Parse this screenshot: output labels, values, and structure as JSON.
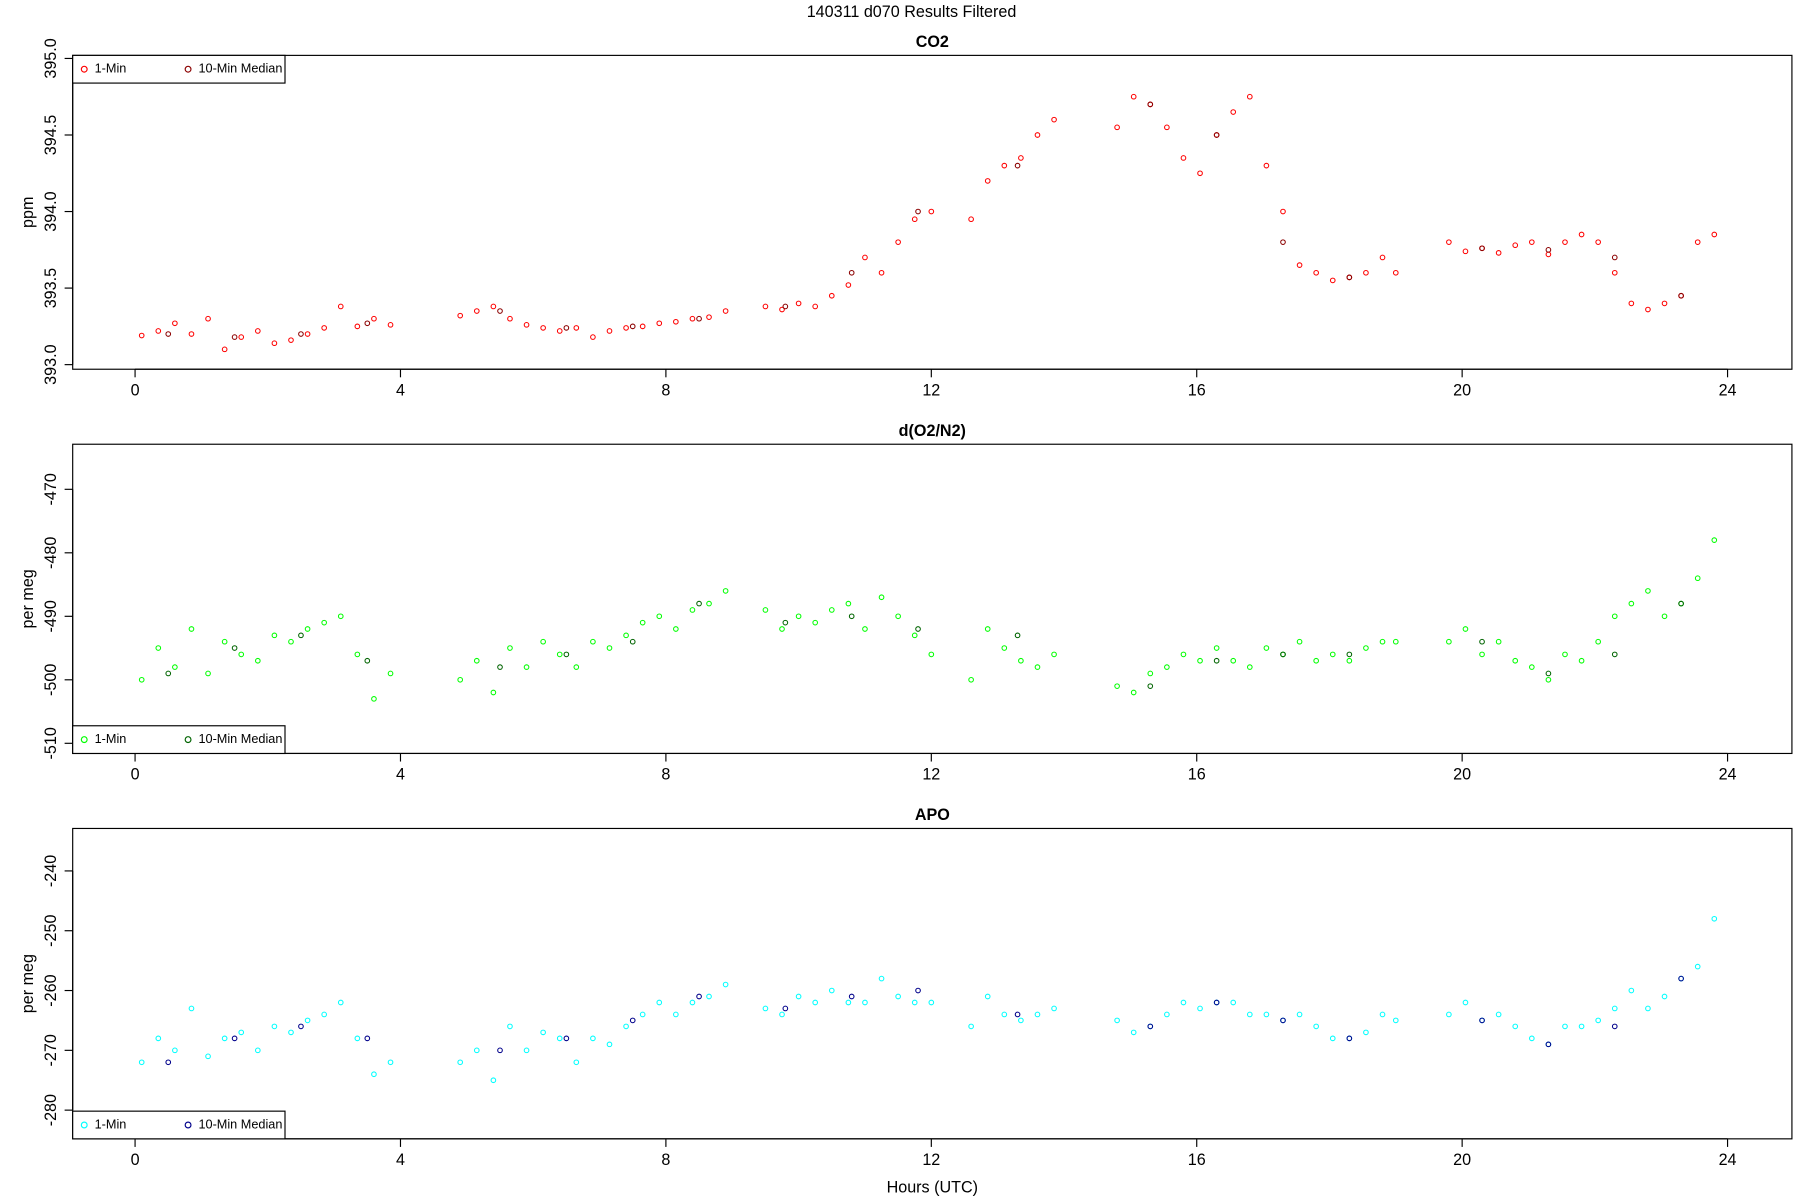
{
  "title": "140311   d070   Results Filtered",
  "chart_data": [
    {
      "type": "scatter",
      "title": "CO2",
      "ylabel": "ppm",
      "legend": "top-left",
      "xlim": [
        -0.94,
        24.97
      ],
      "xticks": [
        0,
        4,
        8,
        12,
        16,
        20,
        24
      ],
      "ylim": [
        392.97,
        395.02
      ],
      "yticks": [
        {
          "value": 393.0,
          "label": "393.0"
        },
        393.5,
        {
          "value": 394.0,
          "label": "394.0"
        },
        394.5,
        {
          "value": 395.0,
          "label": "395.0"
        }
      ],
      "series": [
        {
          "name": "1-Min",
          "color": "#ff0000",
          "x": [
            0.1,
            0.35,
            0.6,
            0.85,
            1.1,
            1.35,
            1.6,
            1.85,
            2.1,
            2.35,
            2.6,
            2.85,
            3.1,
            3.35,
            3.6,
            3.85,
            4.9,
            5.15,
            5.4,
            5.65,
            5.9,
            6.15,
            6.4,
            6.65,
            6.9,
            7.15,
            7.4,
            7.65,
            7.9,
            8.15,
            8.4,
            8.65,
            8.9,
            9.5,
            9.75,
            10,
            10.25,
            10.5,
            10.75,
            11,
            11.25,
            11.5,
            11.75,
            12.0,
            12.6,
            12.85,
            13.1,
            13.35,
            13.6,
            13.85,
            14.8,
            15.05,
            15.3,
            15.55,
            15.8,
            16.05,
            16.3,
            16.55,
            16.8,
            17.05,
            17.3,
            17.55,
            17.8,
            18.05,
            18.3,
            18.55,
            18.8,
            19,
            19.8,
            20.05,
            20.3,
            20.55,
            20.8,
            21.05,
            21.3,
            21.55,
            21.8,
            22.05,
            22.3,
            22.55,
            22.8,
            23.05,
            23.3,
            23.55,
            23.8
          ],
          "values": [
            393.19,
            393.22,
            393.27,
            393.2,
            393.3,
            393.1,
            393.18,
            393.22,
            393.14,
            393.16,
            393.2,
            393.24,
            393.38,
            393.25,
            393.3,
            393.26,
            393.32,
            393.35,
            393.38,
            393.3,
            393.26,
            393.24,
            393.22,
            393.24,
            393.18,
            393.22,
            393.24,
            393.25,
            393.27,
            393.28,
            393.3,
            393.31,
            393.35,
            393.38,
            393.36,
            393.4,
            393.38,
            393.45,
            393.52,
            393.7,
            393.6,
            393.8,
            393.95,
            394.0,
            393.95,
            394.2,
            394.3,
            394.35,
            394.5,
            394.6,
            394.55,
            394.75,
            394.7,
            394.55,
            394.35,
            394.25,
            394.5,
            394.65,
            394.75,
            394.3,
            394.0,
            393.65,
            393.6,
            393.55,
            393.57,
            393.6,
            393.7,
            393.6,
            393.8,
            393.74,
            393.76,
            393.73,
            393.78,
            393.8,
            393.72,
            393.8,
            393.85,
            393.8,
            393.6,
            393.4,
            393.36,
            393.4,
            393.45,
            393.8,
            393.85
          ]
        },
        {
          "name": "10-Min Median",
          "color": "#8b0000",
          "x": [
            0.5,
            1.5,
            2.5,
            3.5,
            5.5,
            6.5,
            7.5,
            8.5,
            9.8,
            10.8,
            11.8,
            13.3,
            15.3,
            16.3,
            17.3,
            18.3,
            20.3,
            21.3,
            22.3,
            23.3
          ],
          "values": [
            393.2,
            393.18,
            393.2,
            393.27,
            393.35,
            393.24,
            393.25,
            393.3,
            393.38,
            393.6,
            394.0,
            394.3,
            394.7,
            394.5,
            393.8,
            393.57,
            393.76,
            393.75,
            393.7,
            393.45
          ]
        }
      ]
    },
    {
      "type": "scatter",
      "title": "d(O2/N2)",
      "ylabel": "per meg",
      "legend": "bottom-left",
      "xlim": [
        -0.94,
        24.97
      ],
      "xticks": [
        0,
        4,
        8,
        12,
        16,
        20,
        24
      ],
      "ylim": [
        -511.6,
        -462.9
      ],
      "yticks": [
        -510,
        -500,
        -490,
        -480,
        -470
      ],
      "series": [
        {
          "name": "1-Min",
          "color": "#00ff00",
          "x": [
            0.1,
            0.35,
            0.6,
            0.85,
            1.1,
            1.35,
            1.6,
            1.85,
            2.1,
            2.35,
            2.6,
            2.85,
            3.1,
            3.35,
            3.6,
            3.85,
            4.9,
            5.15,
            5.4,
            5.65,
            5.9,
            6.15,
            6.4,
            6.65,
            6.9,
            7.15,
            7.4,
            7.65,
            7.9,
            8.15,
            8.4,
            8.65,
            8.9,
            9.5,
            9.75,
            10,
            10.25,
            10.5,
            10.75,
            11,
            11.25,
            11.5,
            11.75,
            12.0,
            12.6,
            12.85,
            13.1,
            13.35,
            13.6,
            13.85,
            14.8,
            15.05,
            15.3,
            15.55,
            15.8,
            16.05,
            16.3,
            16.55,
            16.8,
            17.05,
            17.3,
            17.55,
            17.8,
            18.05,
            18.3,
            18.55,
            18.8,
            19,
            19.8,
            20.05,
            20.3,
            20.55,
            20.8,
            21.05,
            21.3,
            21.55,
            21.8,
            22.05,
            22.3,
            22.55,
            22.8,
            23.05,
            23.3,
            23.55,
            23.8
          ],
          "values": [
            -500,
            -495,
            -498,
            -492,
            -499,
            -494,
            -496,
            -497,
            -493,
            -494,
            -492,
            -491,
            -490,
            -496,
            -503,
            -499,
            -500,
            -497,
            -502,
            -495,
            -498,
            -494,
            -496,
            -498,
            -494,
            -495,
            -493,
            -491,
            -490,
            -492,
            -489,
            -488,
            -486,
            -489,
            -492,
            -490,
            -491,
            -489,
            -488,
            -492,
            -487,
            -490,
            -493,
            -496,
            -500,
            -492,
            -495,
            -497,
            -498,
            -496,
            -501,
            -502,
            -499,
            -498,
            -496,
            -497,
            -495,
            -497,
            -498,
            -495,
            -496,
            -494,
            -497,
            -496,
            -497,
            -495,
            -494,
            -494,
            -494,
            -492,
            -496,
            -494,
            -497,
            -498,
            -500,
            -496,
            -497,
            -494,
            -490,
            -488,
            -486,
            -490,
            -488,
            -484,
            -478
          ]
        },
        {
          "name": "10-Min Median",
          "color": "#006400",
          "x": [
            0.5,
            1.5,
            2.5,
            3.5,
            5.5,
            6.5,
            7.5,
            8.5,
            9.8,
            10.8,
            11.8,
            13.3,
            15.3,
            16.3,
            17.3,
            18.3,
            20.3,
            21.3,
            22.3,
            23.3
          ],
          "values": [
            -499,
            -495,
            -493,
            -497,
            -498,
            -496,
            -494,
            -488,
            -491,
            -490,
            -492,
            -493,
            -501,
            -497,
            -496,
            -496,
            -494,
            -499,
            -496,
            -488
          ]
        }
      ]
    },
    {
      "type": "scatter",
      "title": "APO",
      "ylabel": "per meg",
      "xlabel": "Hours (UTC)",
      "legend": "bottom-left",
      "xlim": [
        -0.94,
        24.97
      ],
      "xticks": [
        0,
        4,
        8,
        12,
        16,
        20,
        24
      ],
      "ylim": [
        -284.8,
        -232.9
      ],
      "yticks": [
        -280,
        -270,
        -260,
        -250,
        -240
      ],
      "series": [
        {
          "name": "1-Min",
          "color": "#00ffff",
          "x": [
            0.1,
            0.35,
            0.6,
            0.85,
            1.1,
            1.35,
            1.6,
            1.85,
            2.1,
            2.35,
            2.6,
            2.85,
            3.1,
            3.35,
            3.6,
            3.85,
            4.9,
            5.15,
            5.4,
            5.65,
            5.9,
            6.15,
            6.4,
            6.65,
            6.9,
            7.15,
            7.4,
            7.65,
            7.9,
            8.15,
            8.4,
            8.65,
            8.9,
            9.5,
            9.75,
            10,
            10.25,
            10.5,
            10.75,
            11,
            11.25,
            11.5,
            11.75,
            12.0,
            12.6,
            12.85,
            13.1,
            13.35,
            13.6,
            13.85,
            14.8,
            15.05,
            15.3,
            15.55,
            15.8,
            16.05,
            16.3,
            16.55,
            16.8,
            17.05,
            17.3,
            17.55,
            17.8,
            18.05,
            18.3,
            18.55,
            18.8,
            19,
            19.8,
            20.05,
            20.3,
            20.55,
            20.8,
            21.05,
            21.3,
            21.55,
            21.8,
            22.05,
            22.3,
            22.55,
            22.8,
            23.05,
            23.3,
            23.55,
            23.8
          ],
          "values": [
            -272,
            -268,
            -270,
            -263,
            -271,
            -268,
            -267,
            -270,
            -266,
            -267,
            -265,
            -264,
            -262,
            -268,
            -274,
            -272,
            -272,
            -270,
            -275,
            -266,
            -270,
            -267,
            -268,
            -272,
            -268,
            -269,
            -266,
            -264,
            -262,
            -264,
            -262,
            -261,
            -259,
            -263,
            -264,
            -261,
            -262,
            -260,
            -262,
            -262,
            -258,
            -261,
            -262,
            -262,
            -266,
            -261,
            -264,
            -265,
            -264,
            -263,
            -265,
            -267,
            -266,
            -264,
            -262,
            -263,
            -262,
            -262,
            -264,
            -264,
            -265,
            -264,
            -266,
            -268,
            -268,
            -267,
            -264,
            -265,
            -264,
            -262,
            -265,
            -264,
            -266,
            -268,
            -269,
            -266,
            -266,
            -265,
            -263,
            -260,
            -263,
            -261,
            -258,
            -256,
            -248
          ]
        },
        {
          "name": "10-Min Median",
          "color": "#00008b",
          "x": [
            0.5,
            1.5,
            2.5,
            3.5,
            5.5,
            6.5,
            7.5,
            8.5,
            9.8,
            10.8,
            11.8,
            13.3,
            15.3,
            16.3,
            17.3,
            18.3,
            20.3,
            21.3,
            22.3,
            23.3
          ],
          "values": [
            -272,
            -268,
            -266,
            -268,
            -270,
            -268,
            -265,
            -261,
            -263,
            -261,
            -260,
            -264,
            -266,
            -262,
            -265,
            -268,
            -265,
            -269,
            -266,
            -258
          ]
        }
      ]
    }
  ]
}
